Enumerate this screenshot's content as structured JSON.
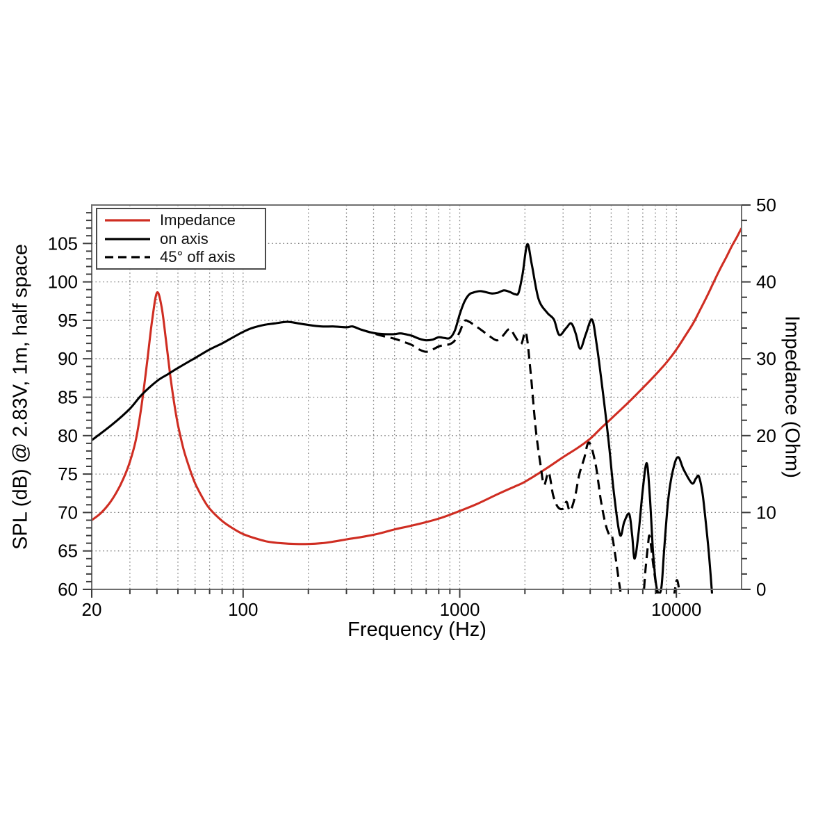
{
  "figure": {
    "x_axis": {
      "label": "Frequency (Hz)",
      "scale": "log",
      "min": 20,
      "max": 20000,
      "major_ticks": [
        20,
        100,
        1000,
        10000
      ],
      "major_tick_labels": [
        "20",
        "100",
        "1000",
        "10000"
      ]
    },
    "y_left": {
      "label": "SPL (dB) @ 2.83V, 1m, half space",
      "min": 60,
      "max": 110,
      "major_tick_step": 5,
      "minor_tick_step": 1,
      "major_tick_labels": [
        "60",
        "65",
        "70",
        "75",
        "80",
        "85",
        "90",
        "95",
        "100",
        "105"
      ]
    },
    "y_right": {
      "label": "Impedance (Ohm)",
      "min": 0,
      "max": 50,
      "major_tick_step": 10,
      "minor_tick_step": 2,
      "major_tick_labels": [
        "0",
        "10",
        "20",
        "30",
        "40",
        "50"
      ]
    },
    "legend": {
      "items": [
        {
          "label": "Impedance",
          "color": "#cf2d22",
          "dash": "solid"
        },
        {
          "label": "on axis",
          "color": "#000000",
          "dash": "solid"
        },
        {
          "label": "45° off axis",
          "color": "#000000",
          "dash": "dashed"
        }
      ]
    },
    "colors": {
      "impedance": "#cf2d22",
      "spl": "#000000",
      "grid": "#7d7d7d",
      "frame": "#6e6e6e",
      "tick": "#3c3c3c",
      "background": "#ffffff"
    },
    "grid": "dotted, every 5 dB horizontal / log decade steps vertical"
  },
  "chart_data": {
    "type": "line",
    "title": "",
    "xlabel": "Frequency (Hz)",
    "x_scale": "log",
    "x_range": [
      20,
      20000
    ],
    "ylabel_left": "SPL (dB) @ 2.83V, 1m, half space",
    "ylim_left": [
      60,
      110
    ],
    "ylabel_right": "Impedance (Ohm)",
    "ylim_right": [
      0,
      50
    ],
    "legend_position": "upper left",
    "series": [
      {
        "name": "Impedance",
        "axis": "right",
        "unit": "Ohm",
        "color": "#cf2d22",
        "dash": "solid",
        "points": [
          [
            20,
            9.0
          ],
          [
            22,
            9.9
          ],
          [
            24,
            11.1
          ],
          [
            26,
            12.6
          ],
          [
            28,
            14.4
          ],
          [
            30,
            16.6
          ],
          [
            32,
            19.5
          ],
          [
            34,
            24.0
          ],
          [
            36,
            29.5
          ],
          [
            38,
            35.0
          ],
          [
            40,
            38.6
          ],
          [
            42,
            36.8
          ],
          [
            44,
            32.5
          ],
          [
            46,
            28.0
          ],
          [
            48,
            24.3
          ],
          [
            50,
            21.4
          ],
          [
            53,
            18.3
          ],
          [
            56,
            16.1
          ],
          [
            60,
            13.8
          ],
          [
            65,
            11.9
          ],
          [
            70,
            10.5
          ],
          [
            80,
            8.9
          ],
          [
            90,
            7.9
          ],
          [
            100,
            7.2
          ],
          [
            115,
            6.6
          ],
          [
            130,
            6.2
          ],
          [
            150,
            6.0
          ],
          [
            175,
            5.9
          ],
          [
            200,
            5.9
          ],
          [
            230,
            6.0
          ],
          [
            260,
            6.2
          ],
          [
            300,
            6.5
          ],
          [
            350,
            6.8
          ],
          [
            400,
            7.1
          ],
          [
            450,
            7.45
          ],
          [
            500,
            7.8
          ],
          [
            600,
            8.3
          ],
          [
            700,
            8.75
          ],
          [
            800,
            9.2
          ],
          [
            900,
            9.7
          ],
          [
            1000,
            10.2
          ],
          [
            1200,
            11.1
          ],
          [
            1500,
            12.4
          ],
          [
            1800,
            13.4
          ],
          [
            2000,
            14.0
          ],
          [
            2500,
            15.7
          ],
          [
            3000,
            17.2
          ],
          [
            3500,
            18.4
          ],
          [
            4000,
            19.6
          ],
          [
            4500,
            21.0
          ],
          [
            5000,
            22.2
          ],
          [
            6000,
            24.3
          ],
          [
            7000,
            26.2
          ],
          [
            8000,
            27.9
          ],
          [
            9000,
            29.5
          ],
          [
            10000,
            31.2
          ],
          [
            11000,
            33.0
          ],
          [
            12000,
            34.7
          ],
          [
            13000,
            36.6
          ],
          [
            14000,
            38.4
          ],
          [
            15000,
            40.2
          ],
          [
            16000,
            41.8
          ],
          [
            17000,
            43.2
          ],
          [
            18000,
            44.6
          ],
          [
            19000,
            45.8
          ],
          [
            20000,
            47.0
          ]
        ]
      },
      {
        "name": "on axis",
        "axis": "left",
        "unit": "dB",
        "color": "#000000",
        "dash": "solid",
        "points": [
          [
            20,
            79.4
          ],
          [
            25,
            81.5
          ],
          [
            30,
            83.5
          ],
          [
            34,
            85.3
          ],
          [
            40,
            87.1
          ],
          [
            45,
            88.0
          ],
          [
            50,
            88.8
          ],
          [
            60,
            90.1
          ],
          [
            70,
            91.2
          ],
          [
            80,
            92.0
          ],
          [
            90,
            92.8
          ],
          [
            100,
            93.5
          ],
          [
            110,
            94.0
          ],
          [
            125,
            94.4
          ],
          [
            140,
            94.6
          ],
          [
            160,
            94.8
          ],
          [
            180,
            94.6
          ],
          [
            200,
            94.4
          ],
          [
            230,
            94.2
          ],
          [
            260,
            94.2
          ],
          [
            300,
            94.1
          ],
          [
            320,
            94.2
          ],
          [
            350,
            93.8
          ],
          [
            380,
            93.5
          ],
          [
            410,
            93.3
          ],
          [
            450,
            93.2
          ],
          [
            500,
            93.2
          ],
          [
            530,
            93.3
          ],
          [
            560,
            93.2
          ],
          [
            600,
            93.0
          ],
          [
            650,
            92.6
          ],
          [
            700,
            92.4
          ],
          [
            750,
            92.5
          ],
          [
            800,
            92.8
          ],
          [
            850,
            92.7
          ],
          [
            900,
            92.7
          ],
          [
            950,
            93.7
          ],
          [
            1000,
            95.8
          ],
          [
            1050,
            97.4
          ],
          [
            1100,
            98.3
          ],
          [
            1150,
            98.6
          ],
          [
            1250,
            98.8
          ],
          [
            1400,
            98.5
          ],
          [
            1500,
            98.6
          ],
          [
            1600,
            98.9
          ],
          [
            1700,
            98.7
          ],
          [
            1800,
            98.4
          ],
          [
            1870,
            98.6
          ],
          [
            1950,
            101.0
          ],
          [
            2050,
            104.9
          ],
          [
            2150,
            102.3
          ],
          [
            2310,
            97.8
          ],
          [
            2530,
            96.0
          ],
          [
            2720,
            95.1
          ],
          [
            2880,
            93.1
          ],
          [
            3100,
            94.0
          ],
          [
            3270,
            94.6
          ],
          [
            3430,
            93.3
          ],
          [
            3600,
            91.3
          ],
          [
            3820,
            93.2
          ],
          [
            4080,
            95.1
          ],
          [
            4280,
            92.0
          ],
          [
            4480,
            87.8
          ],
          [
            4700,
            83.0
          ],
          [
            4900,
            78.5
          ],
          [
            5150,
            72.5
          ],
          [
            5490,
            67.1
          ],
          [
            5750,
            68.8
          ],
          [
            6060,
            69.8
          ],
          [
            6250,
            67.0
          ],
          [
            6420,
            64.0
          ],
          [
            6700,
            67.5
          ],
          [
            7000,
            73.0
          ],
          [
            7300,
            76.4
          ],
          [
            7550,
            72.0
          ],
          [
            7800,
            65.0
          ],
          [
            8050,
            60.8
          ],
          [
            8300,
            59.5
          ],
          [
            8550,
            60.5
          ],
          [
            8800,
            65.5
          ],
          [
            9200,
            72.0
          ],
          [
            9700,
            75.8
          ],
          [
            10200,
            77.2
          ],
          [
            10800,
            75.6
          ],
          [
            11800,
            73.8
          ],
          [
            12300,
            74.4
          ],
          [
            12700,
            74.7
          ],
          [
            13200,
            72.5
          ],
          [
            13700,
            68.5
          ],
          [
            14200,
            64.0
          ],
          [
            14700,
            58.5
          ]
        ]
      },
      {
        "name": "45° off axis",
        "axis": "left",
        "unit": "dB",
        "color": "#000000",
        "dash": "dashed",
        "points": [
          [
            350,
            93.8
          ],
          [
            400,
            93.3
          ],
          [
            450,
            92.9
          ],
          [
            500,
            92.6
          ],
          [
            550,
            92.2
          ],
          [
            600,
            91.8
          ],
          [
            650,
            91.2
          ],
          [
            700,
            90.9
          ],
          [
            750,
            91.2
          ],
          [
            800,
            91.6
          ],
          [
            850,
            91.8
          ],
          [
            900,
            91.9
          ],
          [
            950,
            92.4
          ],
          [
            1000,
            93.5
          ],
          [
            1050,
            94.9
          ],
          [
            1100,
            94.85
          ],
          [
            1150,
            94.5
          ],
          [
            1250,
            93.8
          ],
          [
            1350,
            93.1
          ],
          [
            1480,
            92.4
          ],
          [
            1570,
            92.9
          ],
          [
            1700,
            93.9
          ],
          [
            1800,
            92.9
          ],
          [
            1920,
            91.9
          ],
          [
            2020,
            93.4
          ],
          [
            2120,
            88.5
          ],
          [
            2240,
            81.0
          ],
          [
            2355,
            76.4
          ],
          [
            2450,
            73.6
          ],
          [
            2575,
            75.2
          ],
          [
            2700,
            72.2
          ],
          [
            2840,
            70.7
          ],
          [
            3000,
            70.5
          ],
          [
            3110,
            71.4
          ],
          [
            3230,
            70.2
          ],
          [
            3400,
            72.0
          ],
          [
            3560,
            74.9
          ],
          [
            3750,
            77.0
          ],
          [
            3950,
            79.1
          ],
          [
            4230,
            76.4
          ],
          [
            4480,
            71.6
          ],
          [
            4700,
            68.6
          ],
          [
            4900,
            67.1
          ],
          [
            5050,
            66.9
          ],
          [
            5250,
            64.0
          ],
          [
            5500,
            60.0
          ],
          [
            5700,
            58.0
          ],
          [
            6200,
            57.5
          ],
          [
            6700,
            57.5
          ],
          [
            7000,
            58.5
          ],
          [
            7200,
            62.5
          ],
          [
            7400,
            65.8
          ],
          [
            7530,
            66.9
          ],
          [
            7800,
            63.5
          ],
          [
            8100,
            60.0
          ],
          [
            8400,
            56.5
          ],
          [
            9500,
            56.5
          ],
          [
            9800,
            59.5
          ],
          [
            10050,
            61.2
          ],
          [
            10300,
            59.8
          ],
          [
            10500,
            56.5
          ]
        ]
      }
    ]
  }
}
